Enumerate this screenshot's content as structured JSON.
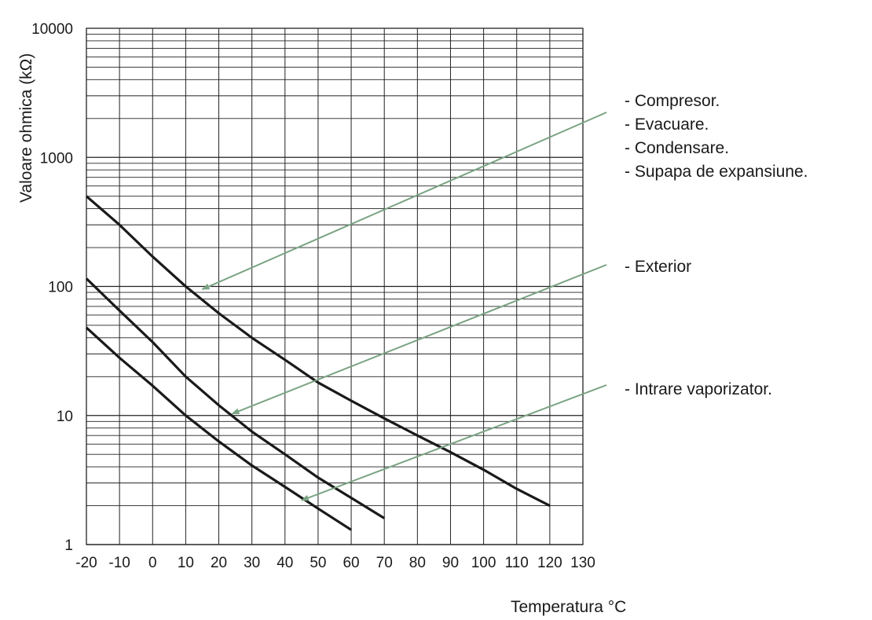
{
  "chart_data": {
    "type": "line",
    "xlabel": "Temperatura °C",
    "ylabel": "Valoare ohmica (kΩ)",
    "x_ticks": [
      "-20",
      "-10",
      "0",
      "10",
      "20",
      "30",
      "40",
      "50",
      "60",
      "70",
      "80",
      "90",
      "100",
      "110",
      "120",
      "130"
    ],
    "y_ticks": [
      "1",
      "10",
      "100",
      "1000",
      "10000"
    ],
    "xlim": [
      -20,
      130
    ],
    "ylim": [
      1,
      10000
    ],
    "y_scale": "log",
    "grid": true,
    "line_color": "#1a1a1a",
    "arrow_color": "#7aa383",
    "series": [
      {
        "x": [
          -20,
          -10,
          0,
          10,
          20,
          30,
          40,
          50,
          60,
          70,
          80,
          90,
          100,
          110,
          120
        ],
        "y": [
          500,
          300,
          170,
          100,
          62,
          40,
          27,
          18,
          13,
          9.5,
          7,
          5.2,
          3.8,
          2.7,
          2.0
        ]
      },
      {
        "x": [
          -20,
          -10,
          0,
          10,
          20,
          30,
          40,
          50,
          60,
          70
        ],
        "y": [
          115,
          65,
          37,
          20,
          12,
          7.5,
          5.0,
          3.3,
          2.3,
          1.6
        ]
      },
      {
        "x": [
          -20,
          -10,
          0,
          10,
          20,
          30,
          40,
          50,
          60
        ],
        "y": [
          48,
          28,
          17,
          10,
          6.3,
          4.1,
          2.8,
          1.9,
          1.3
        ]
      }
    ],
    "annotations": [
      {
        "lines": [
          "- Compresor.",
          "- Evacuare.",
          "- Condensare.",
          "- Supapa de expansiune."
        ],
        "points_to_series": 0
      },
      {
        "lines": [
          "- Exterior"
        ],
        "points_to_series": 1
      },
      {
        "lines": [
          "- Intrare vaporizator."
        ],
        "points_to_series": 2
      }
    ]
  }
}
